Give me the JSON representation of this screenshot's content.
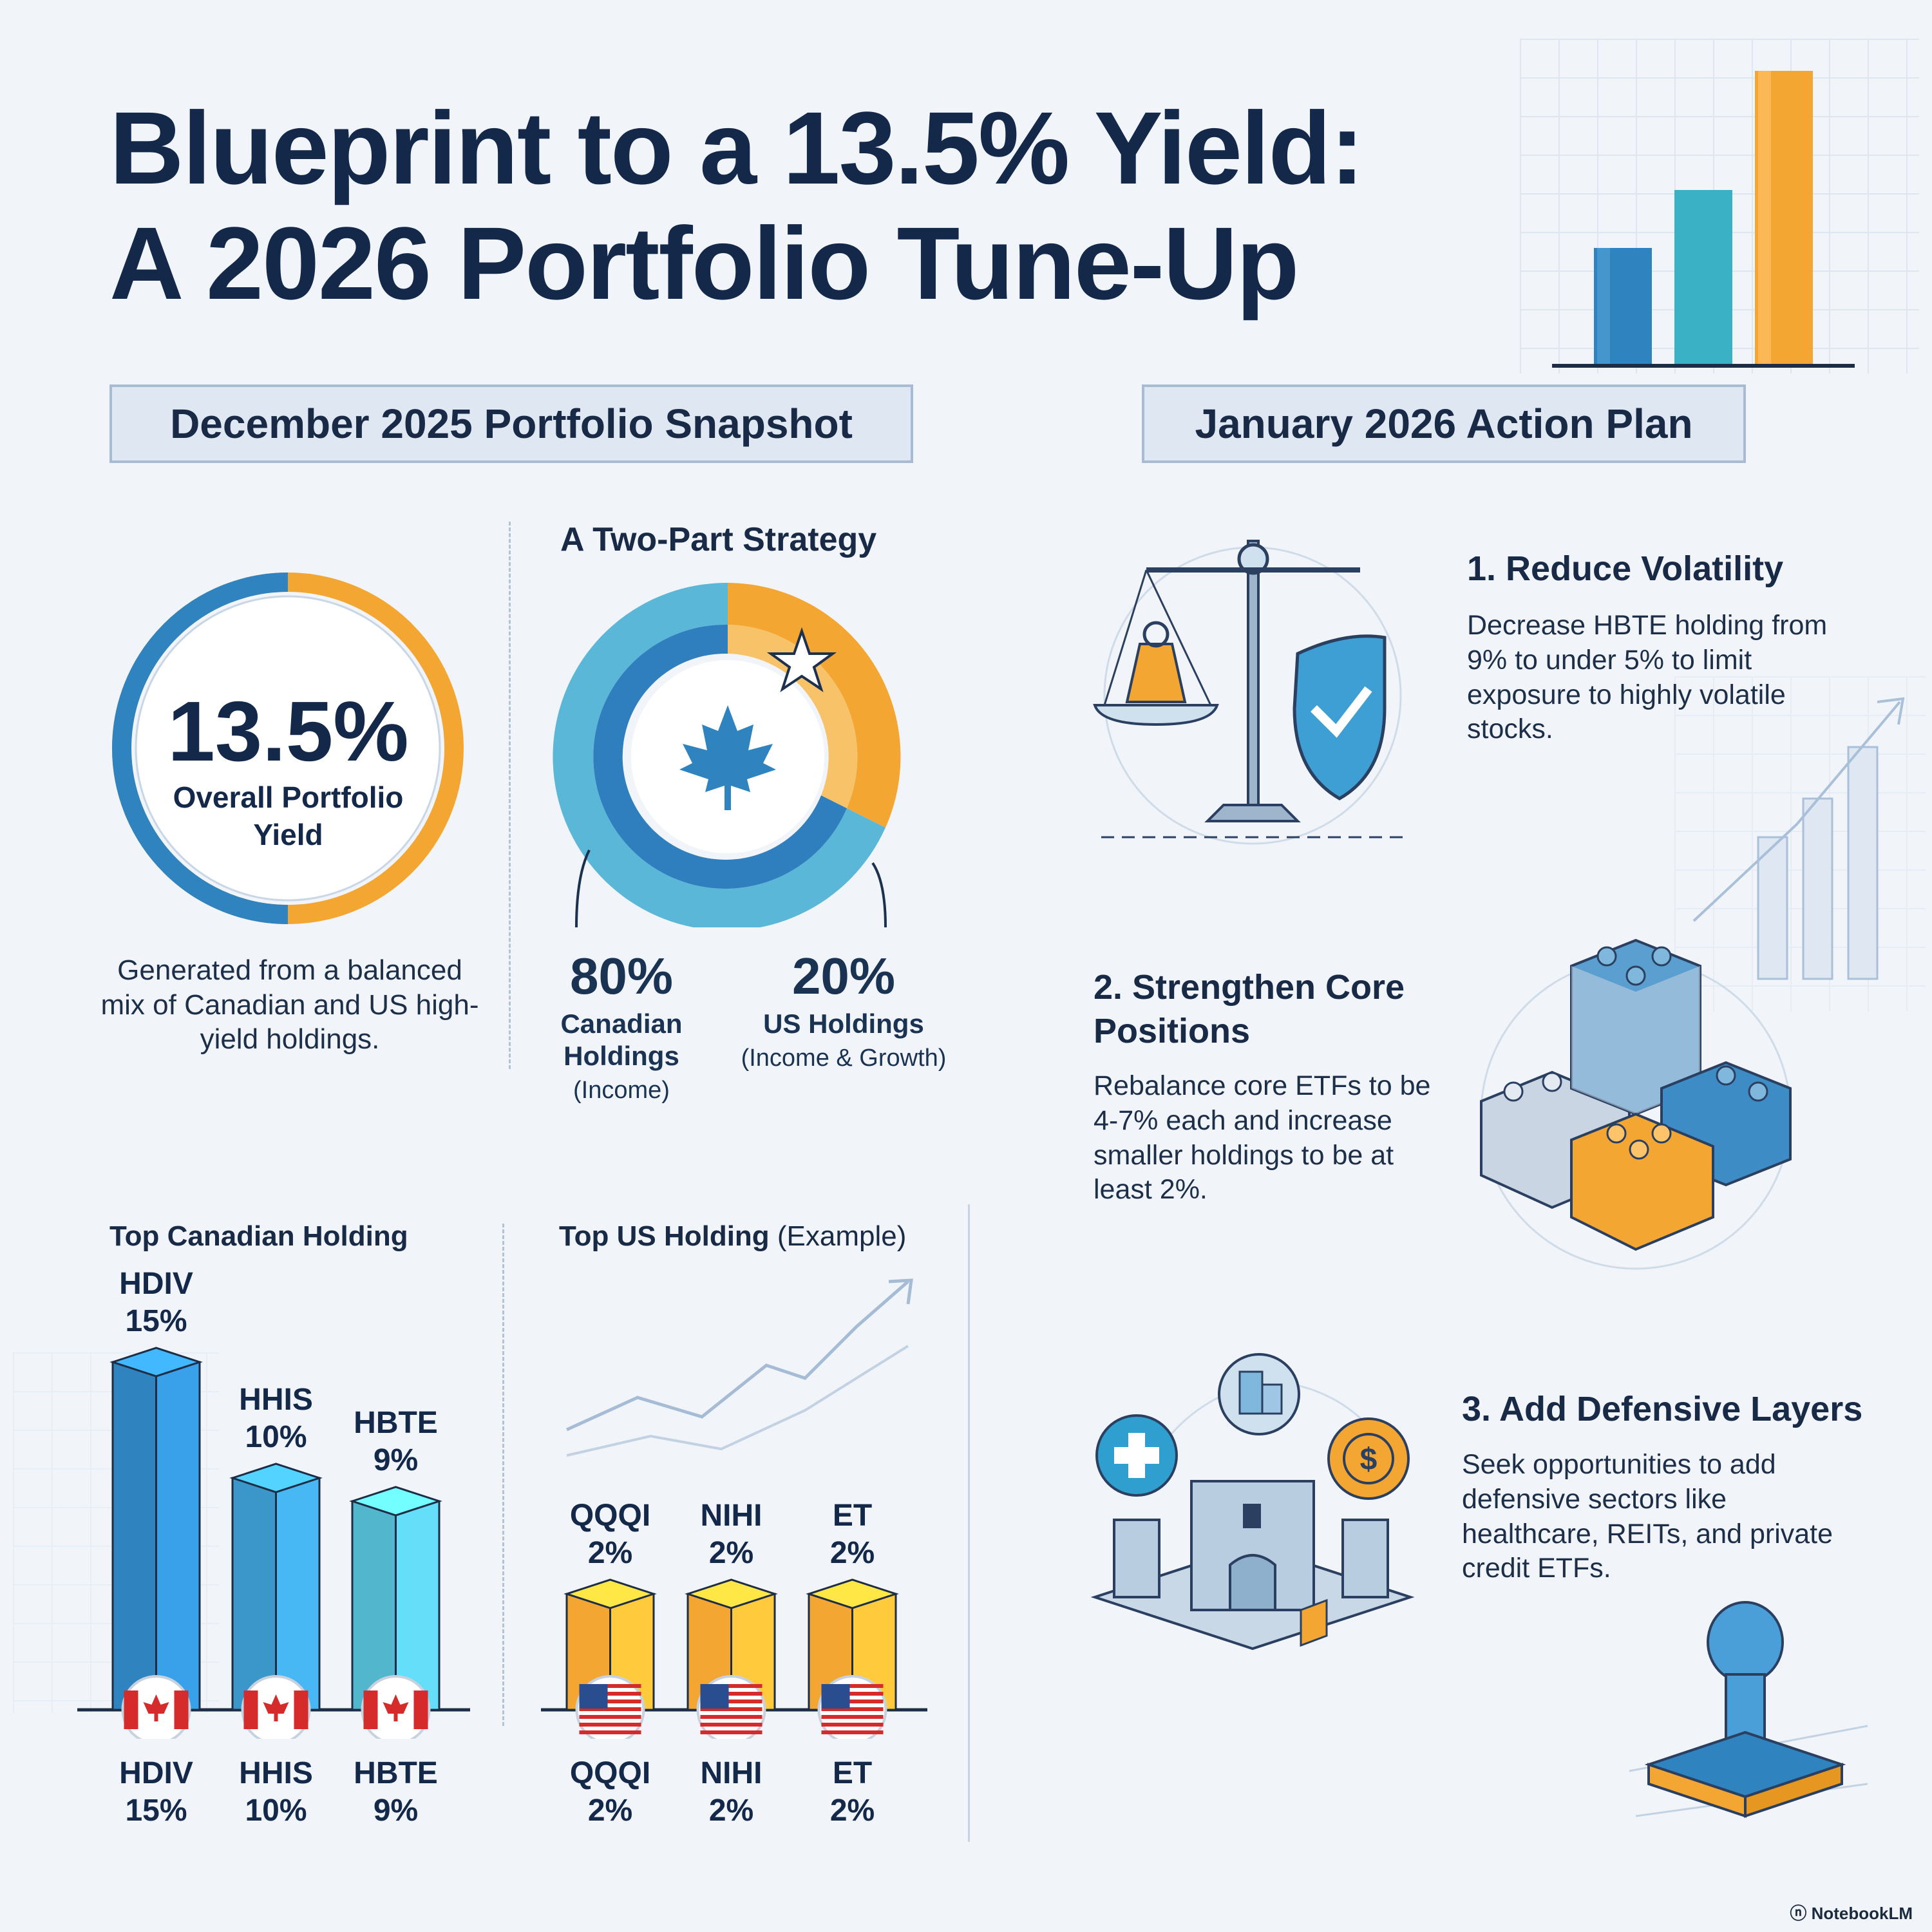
{
  "title_line1": "Blueprint to a 13.5% Yield:",
  "title_line2": "A 2026 Portfolio Tune-Up",
  "snapshot": {
    "header": "December 2025 Portfolio Snapshot",
    "yield_value": "13.5%",
    "yield_label": "Overall Portfolio Yield",
    "description": "Generated from a balanced mix of Canadian and US high-yield holdings.",
    "strategy_title": "A Two-Part Strategy",
    "canadian": {
      "pct": "80%",
      "label": "Canadian Holdings",
      "sub": "(Income)"
    },
    "us": {
      "pct": "20%",
      "label": "US Holdings",
      "sub": "(Income & Growth)"
    }
  },
  "canadian_holdings": {
    "title": "Top Canadian Holding",
    "bars": [
      {
        "ticker": "HDIV",
        "pct": "15%",
        "value": 15,
        "color": "#2f84c0"
      },
      {
        "ticker": "HHIS",
        "pct": "10%",
        "value": 10,
        "color": "#3b97c9"
      },
      {
        "ticker": "HBTE",
        "pct": "9%",
        "value": 9,
        "color": "#52b6cc"
      }
    ]
  },
  "us_holdings": {
    "title": "Top US Holding",
    "title_suffix": "(Example)",
    "bars": [
      {
        "ticker": "QQQI",
        "pct": "2%",
        "value": 2,
        "color": "#f4a632"
      },
      {
        "ticker": "NIHI",
        "pct": "2%",
        "value": 2,
        "color": "#f4a632"
      },
      {
        "ticker": "ET",
        "pct": "2%",
        "value": 2,
        "color": "#f4a632"
      }
    ]
  },
  "action_plan": {
    "header": "January 2026 Action Plan",
    "steps": [
      {
        "title": "1. Reduce Volatility",
        "text": "Decrease HBTE holding from 9% to under 5% to limit exposure to highly volatile stocks."
      },
      {
        "title": "2. Strengthen Core Positions",
        "text": "Rebalance core ETFs to be 4-7% each and increase smaller holdings to be at least 2%."
      },
      {
        "title": "3. Add Defensive Layers",
        "text": "Seek opportunities to add defensive sectors like healthcare, REITs, and private credit ETFs."
      }
    ]
  },
  "footer": "NotebookLM",
  "colors": {
    "blue": "#2f84c0",
    "orange": "#f4a632",
    "teal": "#52b6cc",
    "navy": "#14284a"
  }
}
